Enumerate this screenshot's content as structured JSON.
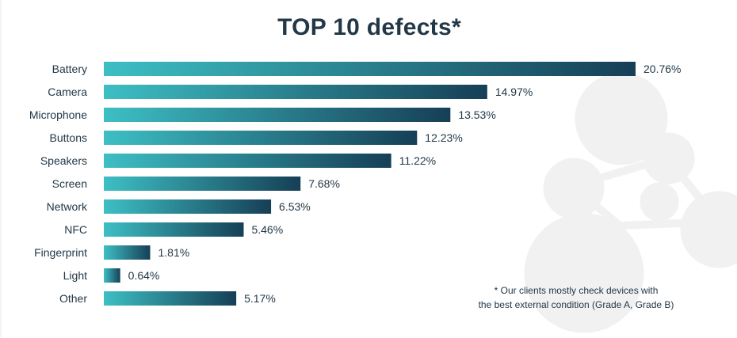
{
  "chart_data": {
    "type": "bar",
    "orientation": "horizontal",
    "title": "TOP 10 defects*",
    "categories": [
      "Battery",
      "Camera",
      "Microphone",
      "Buttons",
      "Speakers",
      "Screen",
      "Network",
      "NFC",
      "Fingerprint",
      "Light",
      "Other"
    ],
    "values": [
      20.76,
      14.97,
      13.53,
      12.23,
      11.22,
      7.68,
      6.53,
      5.46,
      1.81,
      0.64,
      5.17
    ],
    "value_labels": [
      "20.76%",
      "14.97%",
      "13.53%",
      "12.23%",
      "11.22%",
      "7.68%",
      "6.53%",
      "5.46%",
      "1.81%",
      "0.64%",
      "5.17%"
    ],
    "xlim": [
      0,
      20.76
    ],
    "xlabel": "",
    "ylabel": "",
    "grid": false,
    "colors": {
      "bar_start": "#3dbfc4",
      "bar_end": "#163f56",
      "text": "#233847"
    },
    "footnote": [
      "* Our clients mostly check devices with",
      "the best external condition (Grade A, Grade B)"
    ]
  }
}
